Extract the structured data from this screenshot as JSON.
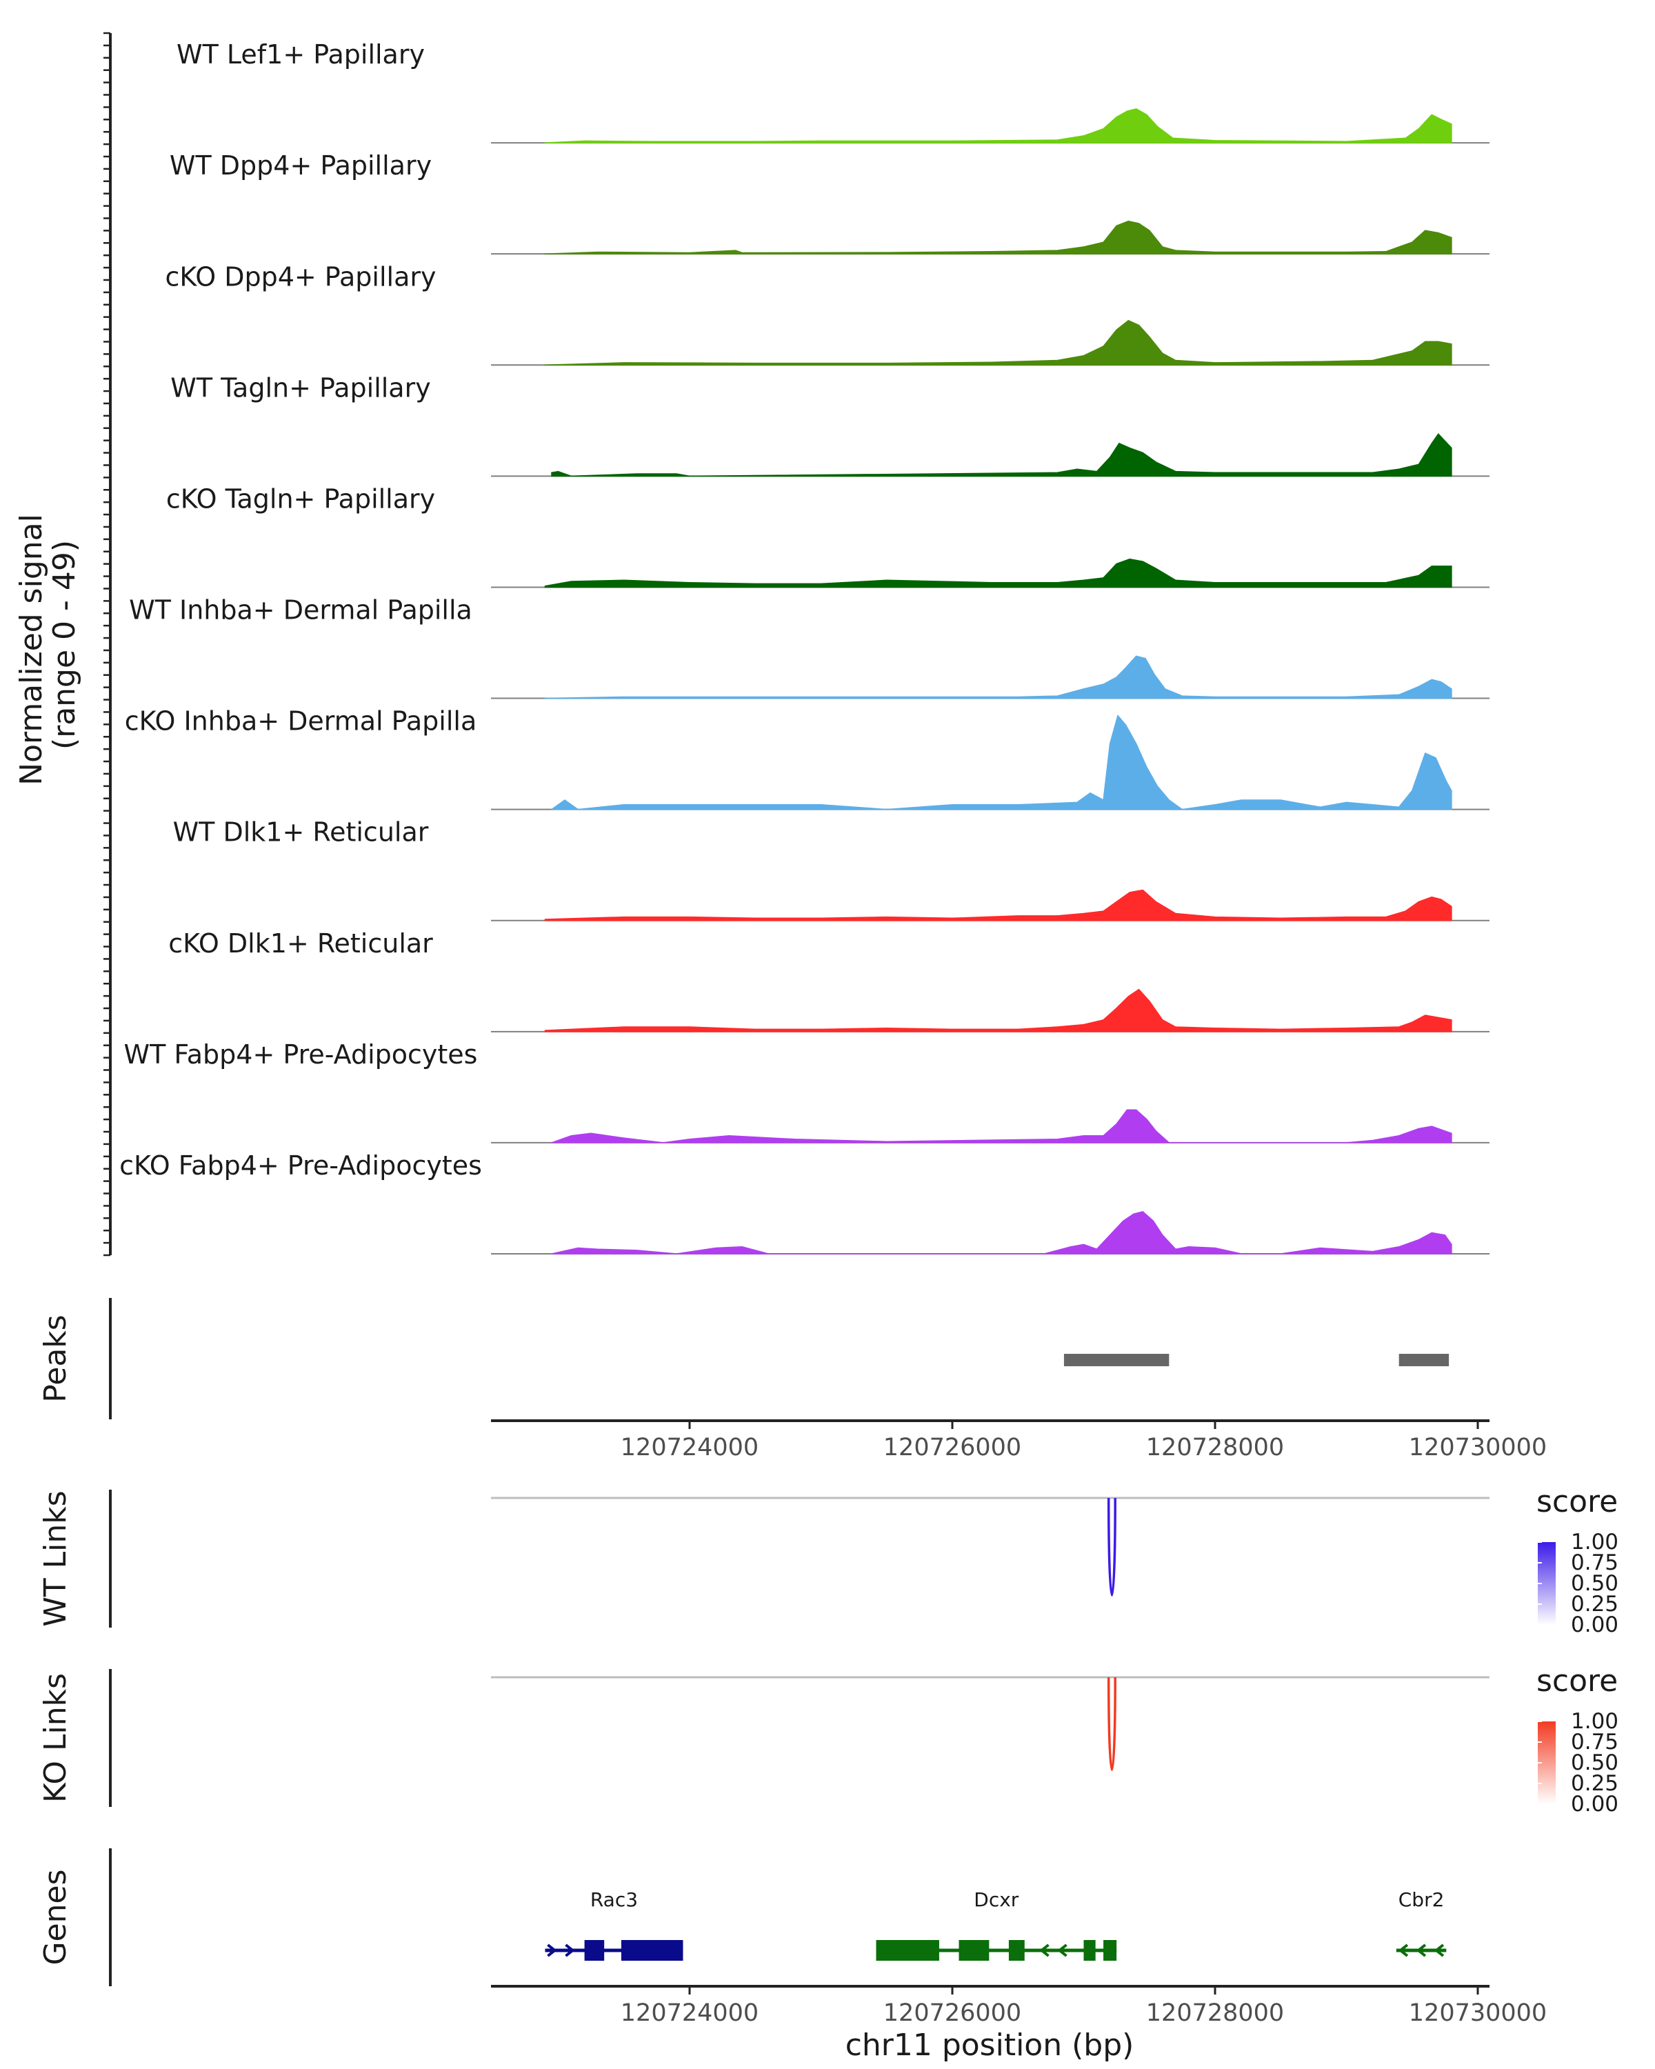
{
  "chart_data": {
    "type": "area",
    "title": "",
    "region": {
      "chrom": "chr11",
      "start": 120722600,
      "end": 120730200
    },
    "xlabel": "chr11 position (bp)",
    "xticks": [
      120724000,
      120726000,
      120728000,
      120730000
    ],
    "xtick_labels": [
      "120724000",
      "120726000",
      "120728000",
      "120730000"
    ],
    "coverage": {
      "ylabel_line1": "Normalized signal",
      "ylabel_line2": "(range 0 - 49)",
      "ylim": [
        0,
        49
      ],
      "series": [
        {
          "name": "WT Lef1+ Papillary",
          "color": "#6fcf0f",
          "x": [
            120722900,
            120723200,
            120723700,
            120724500,
            120725000,
            120726000,
            120726800,
            120727000,
            120727150,
            120727250,
            120727330,
            120727400,
            120727480,
            120727560,
            120727680,
            120728000,
            120729000,
            120729450,
            120729550,
            120729650,
            120729720,
            120729800
          ],
          "values": [
            0,
            0.8,
            0.6,
            0.6,
            0.8,
            0.8,
            1.2,
            3,
            6,
            11,
            13.5,
            14.5,
            12,
            7,
            2,
            1,
            0.6,
            2,
            6,
            12,
            10,
            8
          ]
        },
        {
          "name": "WT Dpp4+ Papillary",
          "color": "#4c8a0a",
          "x": [
            120722900,
            120723300,
            120724000,
            120724350,
            120724400,
            120725500,
            120726300,
            120726800,
            120727000,
            120727150,
            120727250,
            120727340,
            120727420,
            120727500,
            120727600,
            120727700,
            120728000,
            120729000,
            120729300,
            120729500,
            120729600,
            120729700,
            120729800
          ],
          "values": [
            0,
            0.8,
            0.5,
            1.5,
            0.5,
            0.6,
            1,
            1.5,
            3,
            5,
            12,
            14,
            13,
            10,
            3,
            1.5,
            0.8,
            0.8,
            1,
            5,
            10,
            9,
            7
          ]
        },
        {
          "name": "cKO Dpp4+ Papillary",
          "color": "#4c8a0a",
          "x": [
            120722900,
            120723500,
            120724500,
            120725500,
            120726300,
            120726800,
            120727000,
            120727150,
            120727250,
            120727340,
            120727420,
            120727500,
            120727600,
            120727700,
            120728000,
            120728800,
            120729200,
            120729500,
            120729600,
            120729700,
            120729800
          ],
          "values": [
            0,
            1,
            0.8,
            0.8,
            1.2,
            2,
            4,
            8,
            15,
            19,
            17,
            12,
            5,
            2,
            1,
            1.5,
            2,
            6,
            10,
            10,
            9
          ]
        },
        {
          "name": "WT Tagln+ Papillary",
          "color": "#006400",
          "x": [
            120722950,
            120723000,
            120723100,
            120723600,
            120723900,
            120724000,
            120726800,
            120726950,
            120727100,
            120727200,
            120727270,
            120727350,
            120727450,
            120727550,
            120727700,
            120728000,
            120728500,
            120728800,
            120729200,
            120729400,
            120729550,
            120729650,
            120729700,
            120729800
          ],
          "values": [
            1.5,
            2,
            0,
            1,
            1,
            0,
            1.5,
            3,
            2,
            8,
            14,
            12,
            10,
            6,
            2,
            1.5,
            1.5,
            1.5,
            1.5,
            3,
            5,
            14,
            18,
            12
          ]
        },
        {
          "name": "cKO Tagln+ Papillary",
          "color": "#006400",
          "x": [
            120722900,
            120723100,
            120723500,
            120724000,
            120724500,
            120725000,
            120725500,
            120725900,
            120726300,
            120726800,
            120727000,
            120727150,
            120727250,
            120727350,
            120727450,
            120727550,
            120727700,
            120728000,
            120728500,
            120729000,
            120729300,
            120729550,
            120729650,
            120729800
          ],
          "values": [
            0.5,
            2.5,
            3,
            2,
            1.5,
            1.5,
            3,
            2.5,
            2,
            2,
            3,
            4,
            10,
            12,
            11,
            8,
            3,
            2,
            2,
            2,
            2,
            5,
            9,
            9
          ]
        },
        {
          "name": "WT Inhba+ Dermal Papilla",
          "color": "#5caee8",
          "x": [
            120722900,
            120723500,
            120724500,
            120725500,
            120726500,
            120726800,
            120727000,
            120727150,
            120727250,
            120727320,
            120727400,
            120727470,
            120727540,
            120727620,
            120727750,
            120728000,
            120729000,
            120729400,
            120729550,
            120729650,
            120729720,
            120729800
          ],
          "values": [
            0,
            0.6,
            0.6,
            0.6,
            0.6,
            1,
            4,
            6,
            9,
            13,
            18,
            17,
            10,
            4,
            1,
            0.6,
            0.6,
            1.5,
            5,
            8,
            7,
            4
          ]
        },
        {
          "name": "cKO Inhba+ Dermal Papilla",
          "color": "#5caee8",
          "x": [
            120722950,
            120723050,
            120723150,
            120723500,
            120724000,
            120724500,
            120725000,
            120725500,
            120726000,
            120726500,
            120726950,
            120727050,
            120727150,
            120727200,
            120727260,
            120727320,
            120727400,
            120727480,
            120727560,
            120727650,
            120727750,
            120728000,
            120728200,
            120728500,
            120728800,
            120729000,
            120729200,
            120729400,
            120729500,
            120729600,
            120729680,
            120729760,
            120729800
          ],
          "values": [
            0,
            4,
            0,
            2,
            2,
            2,
            2,
            0,
            2,
            2,
            3,
            7,
            4,
            28,
            40,
            36,
            28,
            18,
            10,
            4,
            0,
            2,
            4,
            4,
            1,
            3,
            2,
            1,
            8,
            24,
            22,
            12,
            8
          ]
        },
        {
          "name": "WT Dlk1+ Reticular",
          "color": "#ff2a2a",
          "x": [
            120722900,
            120723500,
            120724000,
            120724500,
            120725000,
            120725500,
            120726000,
            120726500,
            120726800,
            120727000,
            120727150,
            120727250,
            120727350,
            120727450,
            120727550,
            120727700,
            120728000,
            120728500,
            120729000,
            120729300,
            120729450,
            120729550,
            120729650,
            120729720,
            120729800
          ],
          "values": [
            0.5,
            1.5,
            1.5,
            1,
            1,
            1.5,
            1,
            2,
            2,
            3,
            4,
            8,
            12,
            13,
            8,
            3,
            1.5,
            1,
            1.5,
            1.5,
            4,
            8,
            10,
            9,
            6
          ]
        },
        {
          "name": "cKO Dlk1+ Reticular",
          "color": "#ff2a2a",
          "x": [
            120722900,
            120723500,
            120724000,
            120724500,
            120725000,
            120725500,
            120726000,
            120726500,
            120726800,
            120727000,
            120727150,
            120727250,
            120727340,
            120727420,
            120727500,
            120727600,
            120727700,
            120728000,
            120728500,
            120729000,
            120729400,
            120729500,
            120729600,
            120729700,
            120729800
          ],
          "values": [
            0.5,
            2,
            2,
            1,
            1,
            1.5,
            1,
            1,
            2,
            3,
            5,
            10,
            15,
            18,
            13,
            5,
            2,
            1.5,
            1,
            1.5,
            2,
            4,
            7,
            6,
            5
          ]
        },
        {
          "name": "WT Fabp4+ Pre-Adipocytes",
          "color": "#b03ef0",
          "x": [
            120722950,
            120723100,
            120723250,
            120723500,
            120723800,
            120724000,
            120724300,
            120724800,
            120725500,
            120726800,
            120727000,
            120727150,
            120727250,
            120727330,
            120727400,
            120727480,
            120727550,
            120727650,
            120727750,
            120728500,
            120729000,
            120729200,
            120729400,
            120729550,
            120729650,
            120729800
          ],
          "values": [
            0,
            3,
            4,
            2,
            0,
            1.5,
            3,
            1.5,
            0.5,
            1.5,
            3,
            3,
            8,
            14,
            14,
            10,
            5,
            0,
            0,
            0,
            0,
            1,
            3,
            6,
            7,
            4
          ]
        },
        {
          "name": "cKO Fabp4+ Pre-Adipocytes",
          "color": "#b03ef0",
          "x": [
            120722950,
            120723150,
            120723300,
            120723600,
            120723900,
            120724200,
            120724400,
            120724600,
            120726700,
            120726900,
            120727000,
            120727100,
            120727200,
            120727300,
            120727380,
            120727450,
            120727530,
            120727600,
            120727700,
            120727800,
            120728000,
            120728200,
            120728500,
            120728800,
            120729200,
            120729400,
            120729550,
            120729650,
            120729750,
            120729800
          ],
          "values": [
            0,
            2.5,
            2,
            1.5,
            0,
            2.5,
            3,
            0,
            0,
            3,
            4,
            2,
            8,
            14,
            17,
            18,
            14,
            8,
            2,
            3,
            2.5,
            0,
            0,
            2.5,
            1,
            3,
            6,
            9,
            8,
            4
          ]
        }
      ]
    },
    "peaks": {
      "label": "Peaks",
      "ranges": [
        [
          120726850,
          120727650
        ],
        [
          120729400,
          120729780
        ]
      ]
    },
    "links": [
      {
        "label": "WT Links",
        "legend_title": "score",
        "color_low": "#ffffff",
        "color_high": "#3c1be8",
        "legend_ticks": [
          "1.00",
          "0.75",
          "0.50",
          "0.25",
          "0.00"
        ],
        "arcs": [
          {
            "start": 120727190,
            "end": 120727240,
            "score": 0.85
          }
        ]
      },
      {
        "label": "KO Links",
        "legend_title": "score",
        "color_low": "#ffffff",
        "color_high": "#f23b22",
        "legend_ticks": [
          "1.00",
          "0.75",
          "0.50",
          "0.25",
          "0.00"
        ],
        "arcs": [
          {
            "start": 120727190,
            "end": 120727240,
            "score": 0.8
          }
        ]
      }
    ],
    "genes": {
      "label": "Genes",
      "items": [
        {
          "name": "Rac3",
          "strand": "+",
          "color": "#0a0a8c",
          "start": 120722900,
          "end": 120723950,
          "exons": [
            [
              120723200,
              120723350
            ],
            [
              120723480,
              120723950
            ]
          ]
        },
        {
          "name": "Dcxr",
          "strand": "-",
          "color": "#0a6e0a",
          "start": 120725420,
          "end": 120727250,
          "exons": [
            [
              120725420,
              120725900
            ],
            [
              120726050,
              120726280
            ],
            [
              120726430,
              120726550
            ],
            [
              120727000,
              120727090
            ],
            [
              120727150,
              120727250
            ]
          ]
        },
        {
          "name": "Cbr2",
          "strand": "-",
          "color": "#0a6e0a",
          "start": 120729380,
          "end": 120729760,
          "exons": []
        }
      ]
    }
  }
}
